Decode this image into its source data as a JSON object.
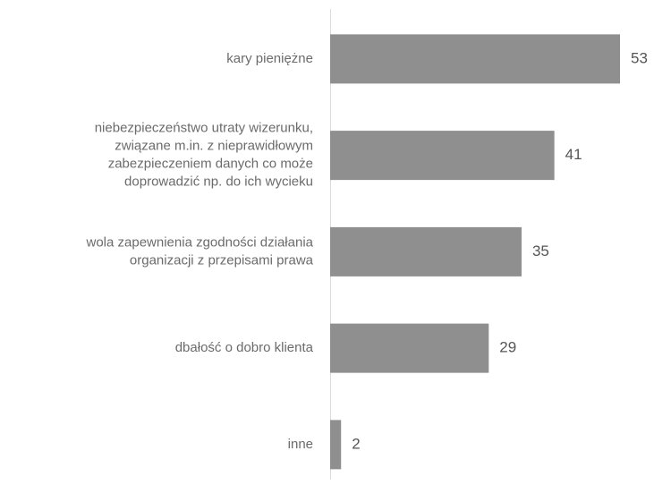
{
  "chart_data": {
    "type": "bar",
    "orientation": "horizontal",
    "categories": [
      "kary pieniężne",
      "niebezpieczeństwo utraty wizerunku,\nzwiązane m.in. z nieprawidłowym\nzabezpieczeniem danych co może\ndoprowadzić np. do ich wycieku",
      "wola zapewnienia zgodności działania\norganizacji z przepisami prawa",
      "dbałość o dobro klienta",
      "inne"
    ],
    "values": [
      53,
      41,
      35,
      29,
      2
    ],
    "color": "#8f8f8f"
  }
}
